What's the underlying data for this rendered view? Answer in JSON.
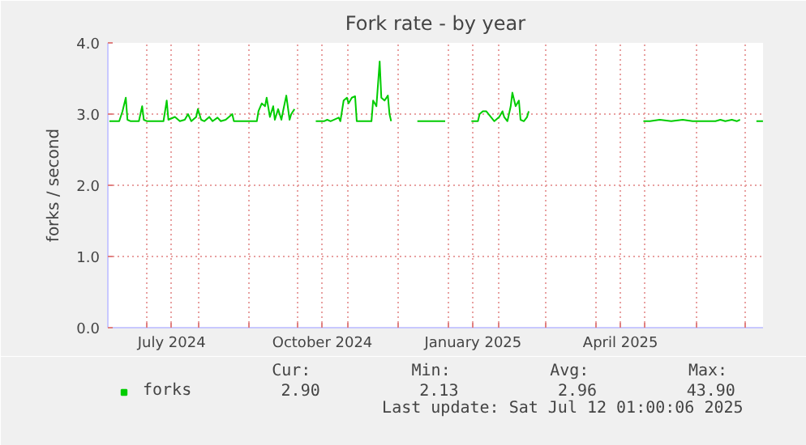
{
  "chart_data": {
    "type": "line",
    "title": "Fork rate - by year",
    "ylabel": "forks / second",
    "xlim": [
      "2024-06-07T01:00",
      "2025-07-12T01:00"
    ],
    "ylim": [
      0,
      4
    ],
    "xticks": [
      {
        "value": "2024-07-01",
        "label": null
      },
      {
        "value": "2024-07-16",
        "label": "July 2024"
      },
      {
        "value": "2024-08-01",
        "label": null
      },
      {
        "value": "2024-09-01",
        "label": null
      },
      {
        "value": "2024-10-01",
        "label": null
      },
      {
        "value": "2024-10-16",
        "label": "October 2024"
      },
      {
        "value": "2024-11-01",
        "label": null
      },
      {
        "value": "2024-12-01",
        "label": null
      },
      {
        "value": "2025-01-01",
        "label": null
      },
      {
        "value": "2025-01-16",
        "label": "January 2025"
      },
      {
        "value": "2025-02-01",
        "label": null
      },
      {
        "value": "2025-03-01",
        "label": null
      },
      {
        "value": "2025-04-01",
        "label": null
      },
      {
        "value": "2025-04-16",
        "label": "April 2025"
      },
      {
        "value": "2025-05-01",
        "label": null
      },
      {
        "value": "2025-06-01",
        "label": null
      },
      {
        "value": "2025-07-01",
        "label": null
      }
    ],
    "yticks": [
      {
        "value": 0,
        "label": "0.0"
      },
      {
        "value": 1,
        "label": "1.0"
      },
      {
        "value": 2,
        "label": "2.0"
      },
      {
        "value": 3,
        "label": "3.0"
      },
      {
        "value": 4,
        "label": "4.0"
      }
    ],
    "grid": true,
    "legend": "bottom",
    "marker": "none",
    "line_style": "solid",
    "x": [
      "2024-06-08",
      "2024-06-14",
      "2024-06-16",
      "2024-06-18",
      "2024-06-19",
      "2024-06-21",
      "2024-06-26",
      "2024-06-28",
      "2024-06-29",
      "2024-07-01",
      "2024-07-11",
      "2024-07-13",
      "2024-07-14",
      "2024-07-18",
      "2024-07-21",
      "2024-07-24",
      "2024-07-26",
      "2024-07-28",
      "2024-07-31",
      "2024-08-01",
      "2024-08-03",
      "2024-08-05",
      "2024-08-08",
      "2024-08-10",
      "2024-08-13",
      "2024-08-15",
      "2024-08-18",
      "2024-08-22",
      "2024-08-23",
      "2024-08-30",
      "2024-09-06",
      "2024-09-07",
      "2024-09-09",
      "2024-09-11",
      "2024-09-12",
      "2024-09-14",
      "2024-09-16",
      "2024-09-17",
      "2024-09-19",
      "2024-09-21",
      "2024-09-22",
      "2024-09-24",
      "2024-09-26",
      "2024-09-27",
      "2024-09-29",
      "2024-10-05",
      "2024-10-12",
      "2024-10-17",
      "2024-10-19",
      "2024-10-21",
      "2024-10-26",
      "2024-10-27",
      "2024-10-29",
      "2024-10-31",
      "2024-11-01",
      "2024-11-03",
      "2024-11-05",
      "2024-11-06",
      "2024-11-15",
      "2024-11-16",
      "2024-11-18",
      "2024-11-20",
      "2024-11-21",
      "2024-11-23",
      "2024-11-25",
      "2024-11-26",
      "2024-11-27",
      "2024-12-05",
      "2024-12-13",
      "2024-12-30",
      "2025-01-08",
      "2025-01-15",
      "2025-01-19",
      "2025-01-20",
      "2025-01-22",
      "2025-01-24",
      "2025-01-29",
      "2025-02-01",
      "2025-02-03",
      "2025-02-04",
      "2025-02-06",
      "2025-02-08",
      "2025-02-09",
      "2025-02-11",
      "2025-02-13",
      "2025-02-14",
      "2025-02-16",
      "2025-02-18",
      "2025-02-19",
      "2025-03-20",
      "2025-04-30",
      "2025-05-04",
      "2025-05-10",
      "2025-05-17",
      "2025-05-24",
      "2025-05-30",
      "2025-06-13",
      "2025-06-16",
      "2025-06-19",
      "2025-06-23",
      "2025-06-26",
      "2025-06-28",
      "2025-07-05",
      "2025-07-08",
      "2025-07-12"
    ],
    "series": [
      {
        "name": "forks",
        "color": "#00cc00",
        "values": [
          2.9,
          2.9,
          3.04,
          3.23,
          2.92,
          2.9,
          2.9,
          3.11,
          2.92,
          2.9,
          2.9,
          3.19,
          2.92,
          2.96,
          2.9,
          2.92,
          3.0,
          2.9,
          2.96,
          3.07,
          2.92,
          2.9,
          2.96,
          2.9,
          2.95,
          2.9,
          2.92,
          3.0,
          2.9,
          2.9,
          2.9,
          3.04,
          3.15,
          3.11,
          3.23,
          2.96,
          3.11,
          2.92,
          3.07,
          2.92,
          3.04,
          3.26,
          2.92,
          3.0,
          3.07,
          null,
          2.9,
          2.9,
          2.92,
          2.9,
          2.95,
          2.9,
          3.19,
          3.23,
          3.15,
          3.23,
          3.25,
          2.9,
          2.9,
          3.19,
          3.11,
          3.74,
          3.23,
          3.19,
          3.26,
          3.0,
          2.9,
          null,
          2.9,
          2.9,
          null,
          2.9,
          2.9,
          3.0,
          3.04,
          3.04,
          2.9,
          2.96,
          3.04,
          2.96,
          2.9,
          3.11,
          3.3,
          3.11,
          3.19,
          2.92,
          2.9,
          2.96,
          3.04,
          null,
          2.9,
          2.9,
          2.92,
          2.9,
          2.92,
          2.9,
          2.9,
          2.92,
          2.9,
          2.92,
          2.9,
          2.92,
          null,
          2.9,
          2.9
        ]
      }
    ],
    "annotations": [
      "Cur:",
      "2.90",
      "Min:",
      "2.13",
      "Avg:",
      "2.96",
      "Max:",
      "43.90",
      "Last update: Sat Jul 12 01:00:06 2025"
    ]
  }
}
